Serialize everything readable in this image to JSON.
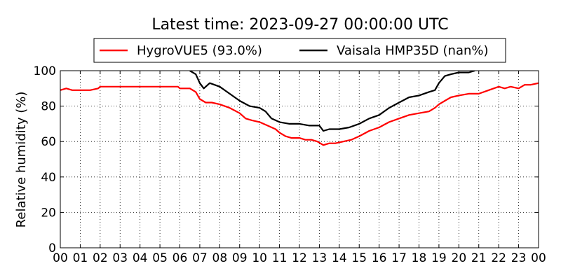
{
  "chart_data": {
    "type": "line",
    "title": "Latest time: 2023-09-27 00:00:00 UTC",
    "xlabel": "",
    "ylabel": "Relative humidity (%)",
    "xlim": [
      0,
      24
    ],
    "ylim": [
      0,
      100
    ],
    "x_tick_labels": [
      "00",
      "01",
      "02",
      "03",
      "04",
      "05",
      "06",
      "07",
      "08",
      "09",
      "10",
      "11",
      "12",
      "13",
      "14",
      "15",
      "16",
      "17",
      "18",
      "19",
      "20",
      "21",
      "22",
      "23",
      "00"
    ],
    "y_tick_labels": [
      "0",
      "20",
      "40",
      "60",
      "80",
      "100"
    ],
    "grid": true,
    "legend_position": "top",
    "series": [
      {
        "name": "HygroVUE5 (93.0%)",
        "color": "#ff0000",
        "x": [
          0.0,
          0.3,
          0.6,
          1.0,
          1.5,
          1.9,
          2.0,
          2.5,
          3.0,
          3.5,
          3.9,
          4.0,
          4.5,
          5.0,
          5.5,
          5.9,
          6.0,
          6.5,
          6.8,
          7.0,
          7.3,
          7.6,
          8.0,
          8.5,
          9.0,
          9.3,
          9.6,
          10.0,
          10.4,
          10.8,
          11.0,
          11.3,
          11.6,
          12.0,
          12.3,
          12.6,
          12.9,
          13.2,
          13.5,
          13.8,
          14.2,
          14.6,
          15.0,
          15.5,
          16.0,
          16.5,
          17.0,
          17.5,
          18.0,
          18.5,
          18.8,
          19.0,
          19.3,
          19.6,
          20.0,
          20.5,
          20.8,
          21.0,
          21.5,
          22.0,
          22.3,
          22.6,
          23.0,
          23.3,
          23.6,
          24.0
        ],
        "y": [
          89,
          90,
          89,
          89,
          89,
          90,
          91,
          91,
          91,
          91,
          91,
          91,
          91,
          91,
          91,
          91,
          90,
          90,
          88,
          84,
          82,
          82,
          81,
          79,
          76,
          73,
          72,
          71,
          69,
          67,
          65,
          63,
          62,
          62,
          61,
          61,
          60,
          58,
          59,
          59,
          60,
          61,
          63,
          66,
          68,
          71,
          73,
          75,
          76,
          77,
          79,
          81,
          83,
          85,
          86,
          87,
          87,
          87,
          89,
          91,
          90,
          91,
          90,
          92,
          92,
          93
        ]
      },
      {
        "name": "Vaisala HMP35D (nan%)",
        "color": "#000000",
        "x": [
          6.5,
          6.8,
          7.0,
          7.2,
          7.5,
          8.0,
          8.5,
          9.0,
          9.5,
          10.0,
          10.3,
          10.6,
          11.0,
          11.5,
          12.0,
          12.5,
          13.0,
          13.2,
          13.5,
          14.0,
          14.5,
          15.0,
          15.5,
          16.0,
          16.5,
          17.0,
          17.5,
          18.0,
          18.5,
          18.8,
          19.0,
          19.3,
          19.6,
          20.0,
          20.5,
          20.8
        ],
        "y": [
          100,
          98,
          93,
          90,
          93,
          91,
          87,
          83,
          80,
          79,
          77,
          73,
          71,
          70,
          70,
          69,
          69,
          66,
          67,
          67,
          68,
          70,
          73,
          75,
          79,
          82,
          85,
          86,
          88,
          89,
          93,
          97,
          98,
          99,
          99,
          100
        ]
      }
    ]
  }
}
